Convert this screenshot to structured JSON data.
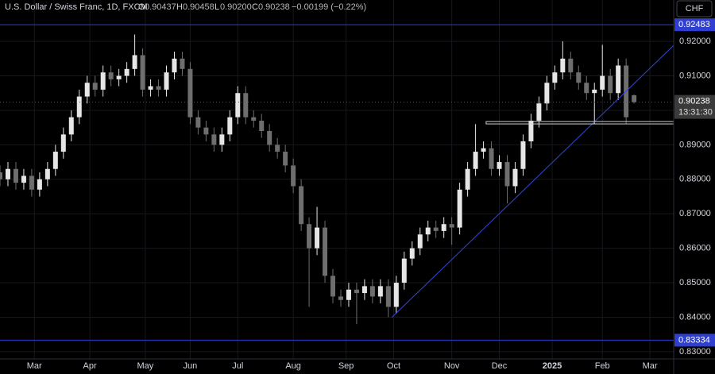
{
  "chart_data": {
    "type": "candlestick",
    "legend": {
      "symbol": "U.S. Dollar / Swiss Franc, 1D, FXCM",
      "o_label": "O",
      "open": "0.90437",
      "h_label": "H",
      "high": "0.90458",
      "l_label": "L",
      "low": "0.90200",
      "c_label": "C",
      "close": "0.90238",
      "change": "−0.00199 (−0.22%)"
    },
    "currency_button": "CHF",
    "x": [
      0,
      3,
      6,
      9,
      12,
      15,
      18,
      21,
      24,
      27,
      30,
      33,
      36,
      39,
      42,
      45,
      48,
      51,
      54,
      57,
      60,
      63,
      66,
      69,
      72,
      75,
      78,
      81,
      84,
      87,
      90,
      93,
      96,
      99,
      102,
      105,
      108,
      111,
      114,
      117,
      120,
      123,
      126,
      129,
      132,
      135,
      138,
      141,
      144,
      147,
      150,
      153,
      156,
      159,
      162,
      165,
      168,
      171,
      174,
      177,
      180,
      183,
      186,
      189,
      192,
      195,
      198,
      201,
      204,
      207,
      210,
      213,
      216,
      219,
      222,
      225,
      228,
      231,
      234,
      237,
      240
    ],
    "series": [
      {
        "name": "USDCHF",
        "up_color": "#e6e6e6",
        "down_color": "#6e6e6e",
        "open": [
          0.882,
          0.88,
          0.883,
          0.879,
          0.881,
          0.877,
          0.88,
          0.883,
          0.888,
          0.893,
          0.898,
          0.904,
          0.908,
          0.906,
          0.911,
          0.909,
          0.91,
          0.912,
          0.916,
          0.906,
          0.907,
          0.906,
          0.911,
          0.915,
          0.912,
          0.898,
          0.895,
          0.893,
          0.89,
          0.893,
          0.898,
          0.905,
          0.898,
          0.897,
          0.894,
          0.89,
          0.888,
          0.884,
          0.878,
          0.867,
          0.86,
          0.866,
          0.852,
          0.846,
          0.845,
          0.848,
          0.847,
          0.849,
          0.846,
          0.849,
          0.843,
          0.85,
          0.857,
          0.86,
          0.864,
          0.866,
          0.865,
          0.867,
          0.866,
          0.877,
          0.883,
          0.888,
          0.889,
          0.883,
          0.885,
          0.878,
          0.883,
          0.891,
          0.897,
          0.902,
          0.908,
          0.911,
          0.915,
          0.911,
          0.908,
          0.905,
          0.906,
          0.91,
          0.905,
          0.913,
          0.90437
        ],
        "high": [
          0.884,
          0.885,
          0.885,
          0.883,
          0.883,
          0.882,
          0.885,
          0.89,
          0.895,
          0.9,
          0.906,
          0.91,
          0.91,
          0.913,
          0.913,
          0.912,
          0.914,
          0.922,
          0.918,
          0.909,
          0.909,
          0.913,
          0.917,
          0.917,
          0.914,
          0.9,
          0.897,
          0.895,
          0.895,
          0.9,
          0.907,
          0.907,
          0.9,
          0.899,
          0.896,
          0.892,
          0.89,
          0.886,
          0.88,
          0.869,
          0.872,
          0.868,
          0.854,
          0.848,
          0.85,
          0.85,
          0.851,
          0.851,
          0.851,
          0.851,
          0.852,
          0.859,
          0.862,
          0.866,
          0.868,
          0.868,
          0.869,
          0.869,
          0.879,
          0.885,
          0.896,
          0.891,
          0.891,
          0.887,
          0.887,
          0.885,
          0.893,
          0.899,
          0.904,
          0.91,
          0.913,
          0.92,
          0.917,
          0.913,
          0.91,
          0.908,
          0.919,
          0.912,
          0.915,
          0.915,
          0.90458
        ],
        "low": [
          0.878,
          0.878,
          0.877,
          0.877,
          0.875,
          0.875,
          0.878,
          0.881,
          0.886,
          0.891,
          0.896,
          0.902,
          0.904,
          0.904,
          0.907,
          0.907,
          0.908,
          0.91,
          0.904,
          0.904,
          0.904,
          0.904,
          0.909,
          0.91,
          0.896,
          0.893,
          0.891,
          0.888,
          0.888,
          0.891,
          0.896,
          0.896,
          0.895,
          0.892,
          0.888,
          0.886,
          0.882,
          0.876,
          0.865,
          0.843,
          0.858,
          0.85,
          0.844,
          0.843,
          0.843,
          0.838,
          0.845,
          0.844,
          0.844,
          0.84,
          0.841,
          0.848,
          0.855,
          0.858,
          0.862,
          0.863,
          0.863,
          0.861,
          0.864,
          0.875,
          0.881,
          0.886,
          0.881,
          0.881,
          0.873,
          0.876,
          0.881,
          0.889,
          0.895,
          0.9,
          0.906,
          0.909,
          0.909,
          0.906,
          0.903,
          0.896,
          0.904,
          0.903,
          0.903,
          0.896,
          0.902
        ],
        "close": [
          0.88,
          0.883,
          0.879,
          0.881,
          0.877,
          0.88,
          0.883,
          0.888,
          0.893,
          0.898,
          0.904,
          0.908,
          0.906,
          0.911,
          0.909,
          0.91,
          0.912,
          0.916,
          0.906,
          0.907,
          0.906,
          0.911,
          0.915,
          0.912,
          0.898,
          0.895,
          0.893,
          0.89,
          0.893,
          0.898,
          0.905,
          0.898,
          0.897,
          0.894,
          0.89,
          0.888,
          0.884,
          0.878,
          0.867,
          0.86,
          0.866,
          0.852,
          0.846,
          0.845,
          0.848,
          0.847,
          0.849,
          0.846,
          0.849,
          0.843,
          0.85,
          0.857,
          0.86,
          0.864,
          0.866,
          0.865,
          0.867,
          0.866,
          0.877,
          0.883,
          0.888,
          0.889,
          0.883,
          0.885,
          0.878,
          0.883,
          0.891,
          0.897,
          0.902,
          0.908,
          0.911,
          0.915,
          0.911,
          0.908,
          0.905,
          0.906,
          0.91,
          0.905,
          0.913,
          0.898,
          0.90238
        ]
      }
    ],
    "xlim": [
      0,
      255
    ],
    "xticks": [
      {
        "value": 13,
        "label": "Mar"
      },
      {
        "value": 34,
        "label": "Apr"
      },
      {
        "value": 55,
        "label": "May"
      },
      {
        "value": 72,
        "label": "Jun"
      },
      {
        "value": 90,
        "label": "Jul"
      },
      {
        "value": 111,
        "label": "Aug"
      },
      {
        "value": 131,
        "label": "Sep"
      },
      {
        "value": 149,
        "label": "Oct"
      },
      {
        "value": 171,
        "label": "Nov"
      },
      {
        "value": 189,
        "label": "Dec"
      },
      {
        "value": 209,
        "label": "2025"
      },
      {
        "value": 228,
        "label": "Feb"
      },
      {
        "value": 246,
        "label": "Mar"
      }
    ],
    "ylim": [
      0.8279,
      0.932
    ],
    "yticks": [
      {
        "value": 0.83,
        "label": "0.83000"
      },
      {
        "value": 0.84,
        "label": "0.84000"
      },
      {
        "value": 0.85,
        "label": "0.85000"
      },
      {
        "value": 0.86,
        "label": "0.86000"
      },
      {
        "value": 0.87,
        "label": "0.87000"
      },
      {
        "value": 0.88,
        "label": "0.88000"
      },
      {
        "value": 0.89,
        "label": "0.89000"
      },
      {
        "value": 0.9,
        "label": "0.90000"
      },
      {
        "value": 0.91,
        "label": "0.91000"
      },
      {
        "value": 0.92,
        "label": "0.92000"
      }
    ],
    "levels": [
      0.92483,
      0.83334
    ],
    "level_color": "#2f3fd0",
    "trendline": {
      "x": [
        148.3,
        255
      ],
      "y": [
        0.83994,
        0.91885
      ],
      "color": "#3445d8"
    },
    "support_zone": {
      "x_start": 184,
      "y": [
        0.89606,
        0.89675
      ],
      "color": "#cfcfcf"
    },
    "last_price": {
      "value": 0.90238,
      "countdown": "13:31:30"
    }
  }
}
